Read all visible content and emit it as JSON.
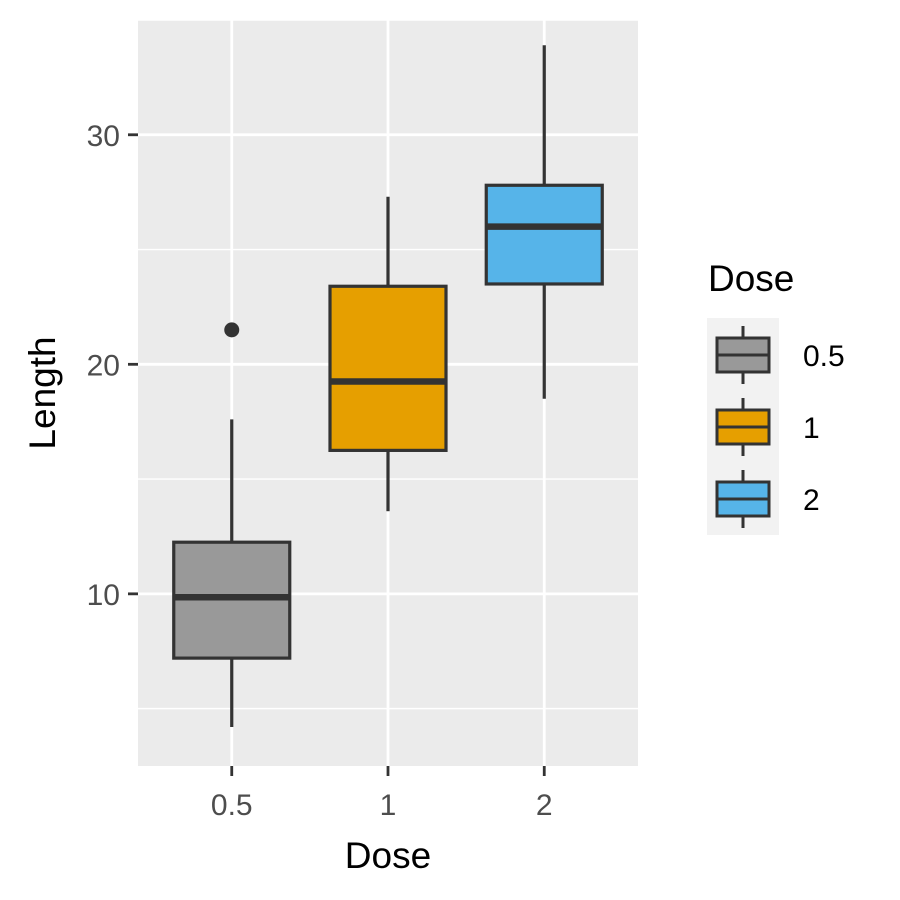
{
  "chart_data": {
    "type": "boxplot",
    "title": "",
    "xlabel": "Dose",
    "ylabel": "Length",
    "x_categories": [
      "0.5",
      "1",
      "2"
    ],
    "y_ticks": [
      10,
      20,
      30
    ],
    "ylim": [
      2.5,
      35
    ],
    "grid": true,
    "legend": {
      "title": "Dose",
      "placement": "right",
      "items": [
        "0.5",
        "1",
        "2"
      ]
    },
    "series": [
      {
        "category": "0.5",
        "color": "#999999",
        "whisker_low": 4.2,
        "q1": 7.2,
        "median": 9.85,
        "q3": 12.25,
        "whisker_high": 17.6,
        "outliers": [
          21.5
        ]
      },
      {
        "category": "1",
        "color": "#E69F00",
        "whisker_low": 13.6,
        "q1": 16.25,
        "median": 19.25,
        "q3": 23.4,
        "whisker_high": 27.3,
        "outliers": []
      },
      {
        "category": "2",
        "color": "#56B4E9",
        "whisker_low": 18.5,
        "q1": 23.5,
        "median": 26.0,
        "q3": 27.8,
        "whisker_high": 33.9,
        "outliers": []
      }
    ]
  }
}
